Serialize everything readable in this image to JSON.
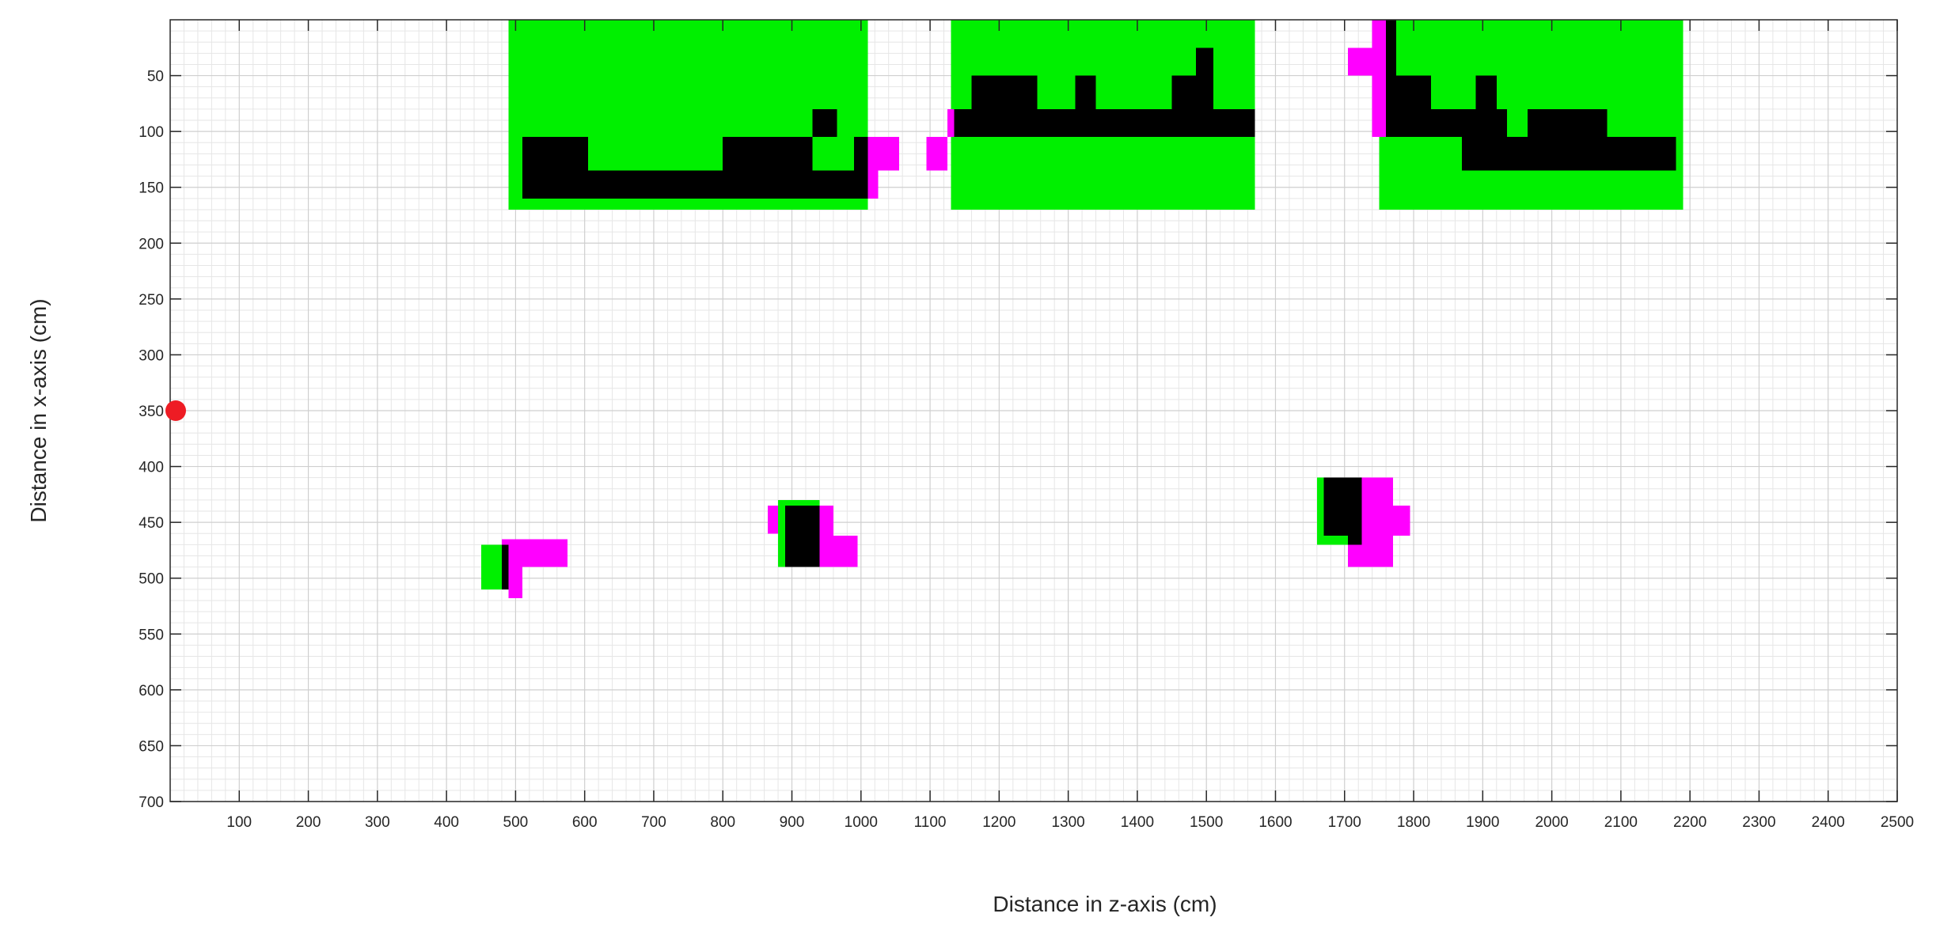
{
  "chart_data": {
    "type": "heatmap",
    "title": "",
    "xlabel": "Distance in z-axis (cm)",
    "ylabel": "Distance in x-axis (cm)",
    "xlim": [
      0,
      2500
    ],
    "ylim": [
      700,
      0
    ],
    "y_axis_inverted": true,
    "grid": "on (major and minor)",
    "cell_size_cm": 10,
    "x_ticks": [
      100,
      200,
      300,
      400,
      500,
      600,
      700,
      800,
      900,
      1000,
      1100,
      1200,
      1300,
      1400,
      1500,
      1600,
      1700,
      1800,
      1900,
      2000,
      2100,
      2200,
      2300,
      2400,
      2500
    ],
    "y_ticks": [
      50,
      100,
      150,
      200,
      250,
      300,
      350,
      400,
      450,
      500,
      550,
      600,
      650,
      700
    ],
    "colors": {
      "green": "#00f000",
      "black": "#000000",
      "magenta": "#ff00ff",
      "marker": "#ee1c24"
    },
    "marker": {
      "z": 0,
      "x": 350
    },
    "regions": [
      {
        "color": "green",
        "z0": 490,
        "z1": 1010,
        "x0": 0,
        "x1": 170
      },
      {
        "color": "green",
        "z0": 1130,
        "z1": 1570,
        "x0": 0,
        "x1": 170
      },
      {
        "color": "green",
        "z0": 1750,
        "z1": 2190,
        "x0": 0,
        "x1": 170
      },
      {
        "color": "black",
        "z0": 510,
        "z1": 1010,
        "x0": 135,
        "x1": 160
      },
      {
        "color": "black",
        "z0": 510,
        "z1": 605,
        "x0": 105,
        "x1": 135
      },
      {
        "color": "black",
        "z0": 800,
        "z1": 930,
        "x0": 105,
        "x1": 135
      },
      {
        "color": "black",
        "z0": 990,
        "z1": 1010,
        "x0": 105,
        "x1": 135
      },
      {
        "color": "black",
        "z0": 930,
        "z1": 965,
        "x0": 80,
        "x1": 105
      },
      {
        "color": "magenta",
        "z0": 1010,
        "z1": 1055,
        "x0": 105,
        "x1": 135
      },
      {
        "color": "magenta",
        "z0": 1010,
        "z1": 1025,
        "x0": 135,
        "x1": 160
      },
      {
        "color": "magenta",
        "z0": 1095,
        "z1": 1125,
        "x0": 105,
        "x1": 135
      },
      {
        "color": "black",
        "z0": 1135,
        "z1": 1570,
        "x0": 80,
        "x1": 105
      },
      {
        "color": "black",
        "z0": 1160,
        "z1": 1255,
        "x0": 50,
        "x1": 80
      },
      {
        "color": "black",
        "z0": 1310,
        "z1": 1340,
        "x0": 50,
        "x1": 80
      },
      {
        "color": "black",
        "z0": 1450,
        "z1": 1485,
        "x0": 50,
        "x1": 80
      },
      {
        "color": "black",
        "z0": 1485,
        "z1": 1510,
        "x0": 25,
        "x1": 80
      },
      {
        "color": "magenta",
        "z0": 1125,
        "z1": 1135,
        "x0": 80,
        "x1": 105
      },
      {
        "color": "black",
        "z0": 1760,
        "z1": 1775,
        "x0": 0,
        "x1": 50
      },
      {
        "color": "black",
        "z0": 1760,
        "z1": 1825,
        "x0": 50,
        "x1": 80
      },
      {
        "color": "black",
        "z0": 1890,
        "z1": 1920,
        "x0": 50,
        "x1": 80
      },
      {
        "color": "black",
        "z0": 1760,
        "z1": 1935,
        "x0": 80,
        "x1": 105
      },
      {
        "color": "black",
        "z0": 1965,
        "z1": 2080,
        "x0": 80,
        "x1": 105
      },
      {
        "color": "black",
        "z0": 1870,
        "z1": 2180,
        "x0": 105,
        "x1": 135
      },
      {
        "color": "magenta",
        "z0": 1740,
        "z1": 1760,
        "x0": 0,
        "x1": 25
      },
      {
        "color": "magenta",
        "z0": 1705,
        "z1": 1760,
        "x0": 25,
        "x1": 50
      },
      {
        "color": "magenta",
        "z0": 1740,
        "z1": 1760,
        "x0": 50,
        "x1": 105
      },
      {
        "color": "green",
        "z0": 450,
        "z1": 480,
        "x0": 470,
        "x1": 510
      },
      {
        "color": "black",
        "z0": 480,
        "z1": 490,
        "x0": 470,
        "x1": 510
      },
      {
        "color": "magenta",
        "z0": 490,
        "z1": 575,
        "x0": 465,
        "x1": 490
      },
      {
        "color": "magenta",
        "z0": 480,
        "z1": 510,
        "x0": 465,
        "x1": 470
      },
      {
        "color": "magenta",
        "z0": 490,
        "z1": 510,
        "x0": 490,
        "x1": 518
      },
      {
        "color": "green",
        "z0": 880,
        "z1": 940,
        "x0": 430,
        "x1": 435
      },
      {
        "color": "green",
        "z0": 880,
        "z1": 890,
        "x0": 435,
        "x1": 490
      },
      {
        "color": "black",
        "z0": 890,
        "z1": 940,
        "x0": 435,
        "x1": 490
      },
      {
        "color": "magenta",
        "z0": 865,
        "z1": 880,
        "x0": 435,
        "x1": 460
      },
      {
        "color": "magenta",
        "z0": 940,
        "z1": 960,
        "x0": 435,
        "x1": 490
      },
      {
        "color": "magenta",
        "z0": 960,
        "z1": 995,
        "x0": 462,
        "x1": 490
      },
      {
        "color": "green",
        "z0": 1660,
        "z1": 1670,
        "x0": 410,
        "x1": 470
      },
      {
        "color": "green",
        "z0": 1670,
        "z1": 1705,
        "x0": 462,
        "x1": 470
      },
      {
        "color": "black",
        "z0": 1670,
        "z1": 1725,
        "x0": 410,
        "x1": 462
      },
      {
        "color": "black",
        "z0": 1705,
        "z1": 1725,
        "x0": 462,
        "x1": 470
      },
      {
        "color": "magenta",
        "z0": 1725,
        "z1": 1770,
        "x0": 410,
        "x1": 490
      },
      {
        "color": "magenta",
        "z0": 1705,
        "z1": 1725,
        "x0": 470,
        "x1": 490
      },
      {
        "color": "magenta",
        "z0": 1770,
        "z1": 1795,
        "x0": 435,
        "x1": 462
      }
    ]
  }
}
